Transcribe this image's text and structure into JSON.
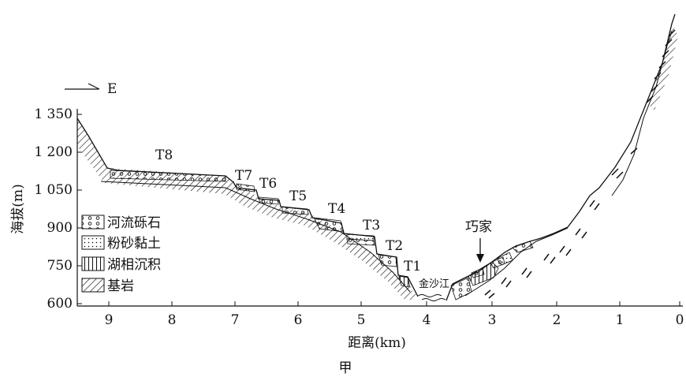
{
  "direction_label": "E",
  "y_axis_title": "海拔(m)",
  "x_axis_title": "距离(km)",
  "caption": "甲",
  "y_ticks": [
    "1 350",
    "1 200",
    "1 050",
    "900",
    "750",
    "600"
  ],
  "x_ticks": [
    "9",
    "8",
    "7",
    "6",
    "5",
    "4",
    "3",
    "2",
    "1",
    "0"
  ],
  "terraces": [
    {
      "label": "T8"
    },
    {
      "label": "T7"
    },
    {
      "label": "T6"
    },
    {
      "label": "T5"
    },
    {
      "label": "T4"
    },
    {
      "label": "T3"
    },
    {
      "label": "T2"
    },
    {
      "label": "T1"
    }
  ],
  "river_label": "金沙江",
  "place_label": "巧家",
  "legend": [
    {
      "label": "河流砾石",
      "pattern": "gravel"
    },
    {
      "label": "粉砂黏土",
      "pattern": "silt"
    },
    {
      "label": "湖相沉积",
      "pattern": "lake"
    },
    {
      "label": "基岩",
      "pattern": "bedrock"
    }
  ]
}
